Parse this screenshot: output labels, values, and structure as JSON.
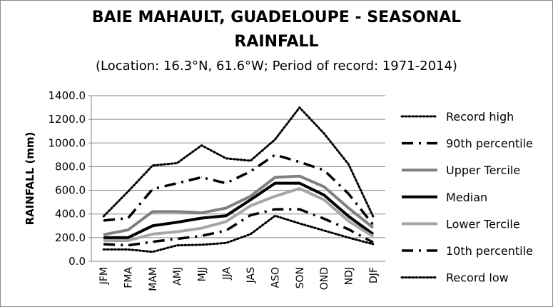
{
  "chart_data": {
    "type": "line",
    "title_line1": "BAIE MAHAULT, GUADELOUPE - SEASONAL",
    "title_line2": "RAINFALL",
    "subtitle": "(Location: 16.3°N, 61.6°W; Period of record: 1971-2014)",
    "xlabel": "",
    "ylabel": "RAINFALL (mm)",
    "ylim": [
      0,
      1400
    ],
    "yticks": [
      "0.0",
      "200.0",
      "400.0",
      "600.0",
      "800.0",
      "1000.0",
      "1200.0",
      "1400.0"
    ],
    "categories": [
      "JFM",
      "FMA",
      "MAM",
      "AMJ",
      "MJJ",
      "JJA",
      "JAS",
      "ASO",
      "SON",
      "OND",
      "NDJ",
      "DJF"
    ],
    "grid": "horizontal",
    "legend_position": "right",
    "series": [
      {
        "name": "Record high",
        "style": "dotted",
        "color": "#000000",
        "values": [
          380,
          590,
          810,
          830,
          980,
          870,
          850,
          1030,
          1300,
          1080,
          820,
          380
        ]
      },
      {
        "name": "90th percentile",
        "style": "dashdot",
        "color": "#000000",
        "values": [
          345,
          365,
          610,
          660,
          710,
          660,
          760,
          900,
          840,
          770,
          570,
          310
        ]
      },
      {
        "name": "Upper Tercile",
        "style": "solid",
        "color": "#808080",
        "values": [
          225,
          265,
          420,
          420,
          410,
          450,
          550,
          710,
          720,
          630,
          450,
          285
        ]
      },
      {
        "name": "Median",
        "style": "solid",
        "color": "#000000",
        "values": [
          200,
          200,
          300,
          330,
          365,
          385,
          520,
          660,
          660,
          560,
          380,
          230
        ]
      },
      {
        "name": "Lower Tercile",
        "style": "solid",
        "color": "#a6a6a6",
        "values": [
          175,
          175,
          230,
          250,
          280,
          335,
          470,
          550,
          615,
          520,
          340,
          210
        ]
      },
      {
        "name": "10th percentile",
        "style": "dashdot",
        "color": "#000000",
        "values": [
          145,
          135,
          165,
          190,
          215,
          260,
          390,
          440,
          440,
          360,
          270,
          160
        ]
      },
      {
        "name": "Record low",
        "style": "dotted",
        "color": "#000000",
        "values": [
          100,
          100,
          80,
          135,
          140,
          155,
          230,
          385,
          320,
          260,
          200,
          145
        ]
      }
    ]
  }
}
